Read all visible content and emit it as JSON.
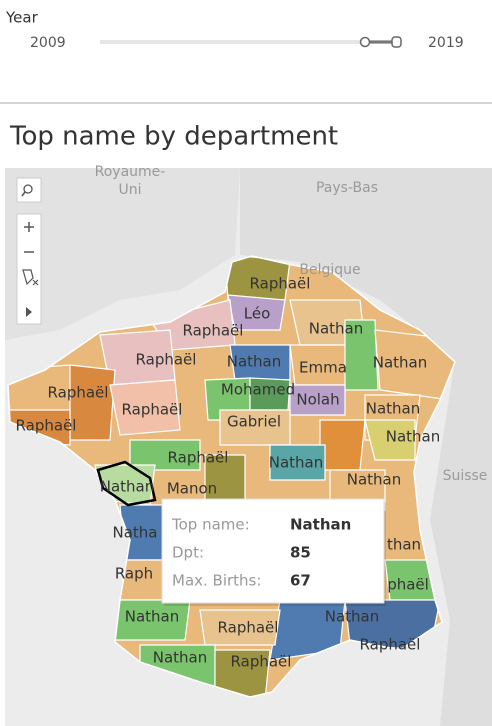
{
  "filter": {
    "label": "Year",
    "min": "2009",
    "max": "2019"
  },
  "title": "Top name by department",
  "map": {
    "countries": [
      [
        "Royaume-",
        "Uni"
      ],
      [
        "Pays-Bas"
      ],
      [
        "Belgique"
      ],
      [
        "Suisse"
      ]
    ],
    "departments": [
      "Raphaël",
      "Léo",
      "Raphaël",
      "Nathan",
      "Raphaël",
      "Nathan",
      "Emma",
      "Nathan",
      "Raphaël",
      "Mohamed",
      "Nolah",
      "Raphaël",
      "Raphaël",
      "Gabriel",
      "Nathan",
      "Nathan",
      "Raphaël",
      "Nathan",
      "Nathan",
      "Nathan",
      "Manon",
      "Natha",
      "Raph",
      "than",
      "phaël",
      "Nathan",
      "Nathan",
      "Raphaël",
      "Raphaël",
      "Nathan",
      "Raphaël"
    ]
  },
  "tooltip": {
    "rows": [
      {
        "label": "Top name:",
        "value": "Nathan"
      },
      {
        "label": "Dpt:",
        "value": "85"
      },
      {
        "label": "Max. Births:",
        "value": "67"
      }
    ]
  }
}
